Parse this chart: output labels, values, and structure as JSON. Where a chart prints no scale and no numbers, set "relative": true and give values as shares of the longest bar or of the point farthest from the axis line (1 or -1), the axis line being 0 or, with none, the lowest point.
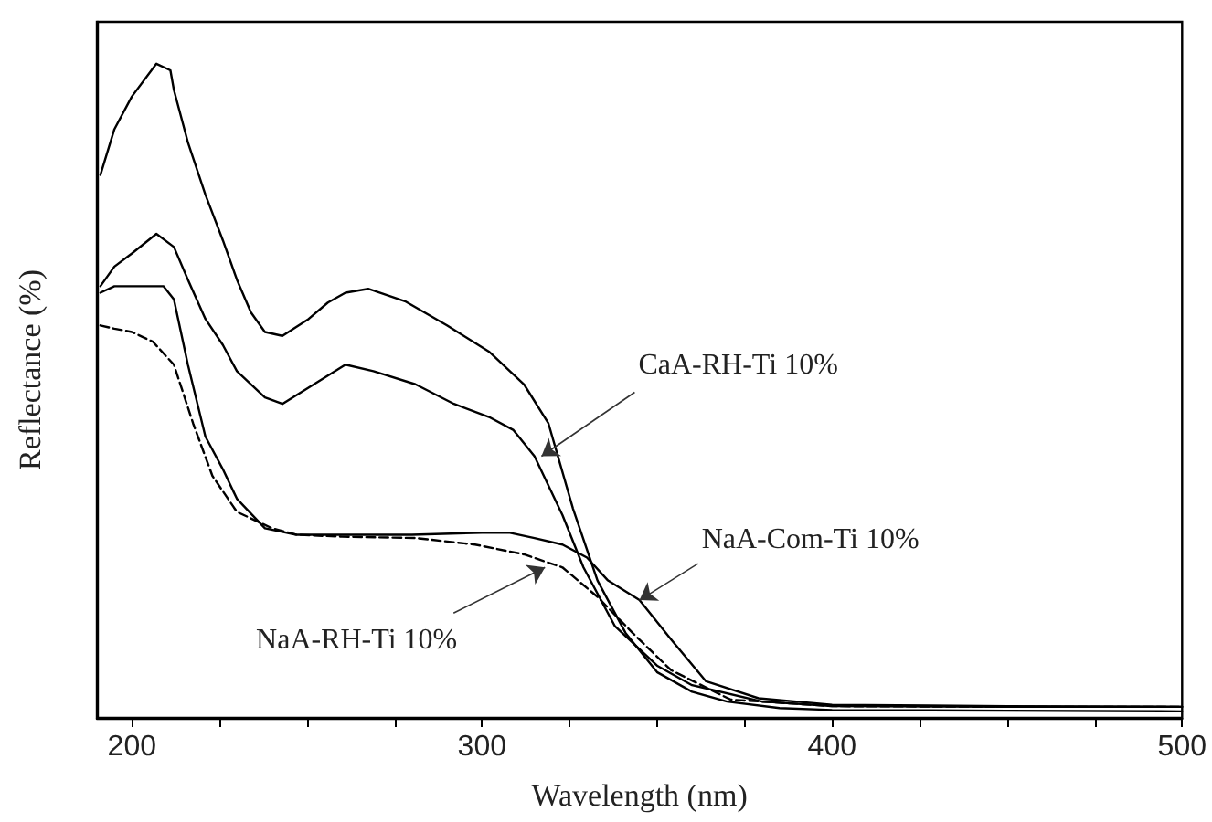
{
  "chart_data": {
    "type": "line",
    "xlabel": "Wavelength (nm)",
    "ylabel": "Reflectance (%)",
    "relative": true,
    "tick_labels": "x",
    "xlim": [
      190,
      500
    ],
    "xticks": [
      200,
      {
        "value": 225,
        "label": null
      },
      {
        "value": 250,
        "label": null
      },
      {
        "value": 275,
        "label": null
      },
      300,
      {
        "value": 325,
        "label": null
      },
      {
        "value": 350,
        "label": null
      },
      {
        "value": 375,
        "label": null
      },
      400,
      {
        "value": 425,
        "label": null
      },
      {
        "value": 450,
        "label": null
      },
      {
        "value": 475,
        "label": null
      },
      500
    ],
    "grid": false,
    "marker": "none",
    "series": [
      {
        "color": "#000000",
        "line_style": "solid",
        "x": [
          191,
          195,
          200,
          207,
          211,
          212,
          216,
          221,
          226,
          230,
          234,
          238,
          243,
          250.5,
          256,
          261,
          267.5,
          278,
          290,
          302,
          312,
          319,
          326,
          333,
          341,
          350,
          360,
          370,
          385,
          400,
          450,
          500
        ],
        "values": [
          0.83,
          0.9,
          0.95,
          1.0,
          0.99,
          0.96,
          0.88,
          0.8,
          0.73,
          0.67,
          0.62,
          0.59,
          0.584,
          0.61,
          0.635,
          0.65,
          0.656,
          0.637,
          0.6,
          0.56,
          0.51,
          0.45,
          0.32,
          0.21,
          0.13,
          0.07,
          0.04,
          0.025,
          0.015,
          0.012,
          0.011,
          0.01
        ]
      },
      {
        "color": "#000000",
        "line_style": "solid",
        "x": [
          191,
          195,
          200,
          207,
          212,
          216,
          221,
          226,
          230,
          238,
          243,
          252,
          261,
          269,
          281,
          292,
          302,
          309,
          315,
          323,
          329,
          338,
          350,
          360,
          380,
          400,
          450,
          500
        ],
        "values": [
          0.66,
          0.69,
          0.71,
          0.74,
          0.72,
          0.67,
          0.61,
          0.57,
          0.53,
          0.49,
          0.48,
          0.51,
          0.54,
          0.53,
          0.51,
          0.48,
          0.46,
          0.44,
          0.4,
          0.31,
          0.23,
          0.14,
          0.08,
          0.05,
          0.025,
          0.018,
          0.017,
          0.017
        ]
      },
      {
        "color": "#000000",
        "line_style": "solid",
        "x": [
          191,
          195,
          200,
          209,
          212,
          216,
          221,
          226,
          230,
          238,
          247,
          260,
          280,
          300,
          308,
          315,
          323,
          330,
          336,
          345,
          354,
          364,
          379,
          400,
          450,
          500
        ],
        "values": [
          0.65,
          0.66,
          0.66,
          0.66,
          0.64,
          0.54,
          0.43,
          0.38,
          0.335,
          0.29,
          0.28,
          0.28,
          0.28,
          0.283,
          0.283,
          0.275,
          0.265,
          0.245,
          0.21,
          0.18,
          0.12,
          0.056,
          0.03,
          0.02,
          0.018,
          0.017
        ]
      },
      {
        "color": "#000000",
        "line_style": "dashed",
        "x": [
          191,
          195,
          200,
          206,
          212,
          217.5,
          223,
          230,
          240,
          247,
          260,
          281,
          298,
          312,
          323,
          333,
          343,
          354,
          371,
          400,
          450,
          500
        ],
        "values": [
          0.6,
          0.595,
          0.59,
          0.575,
          0.54,
          0.45,
          0.37,
          0.315,
          0.29,
          0.28,
          0.277,
          0.275,
          0.265,
          0.25,
          0.23,
          0.185,
          0.13,
          0.073,
          0.028,
          0.018,
          0.017,
          0.017
        ]
      }
    ],
    "annotations": [
      {
        "text": "CaA-RH-Ti 10%",
        "x": 317,
        "y": 0.4
      },
      {
        "text": "NaA-Com-Ti 10%",
        "x": 345,
        "y": 0.18
      },
      {
        "text": "NaA-RH-Ti 10%",
        "x": 318,
        "y": 0.23
      }
    ]
  }
}
